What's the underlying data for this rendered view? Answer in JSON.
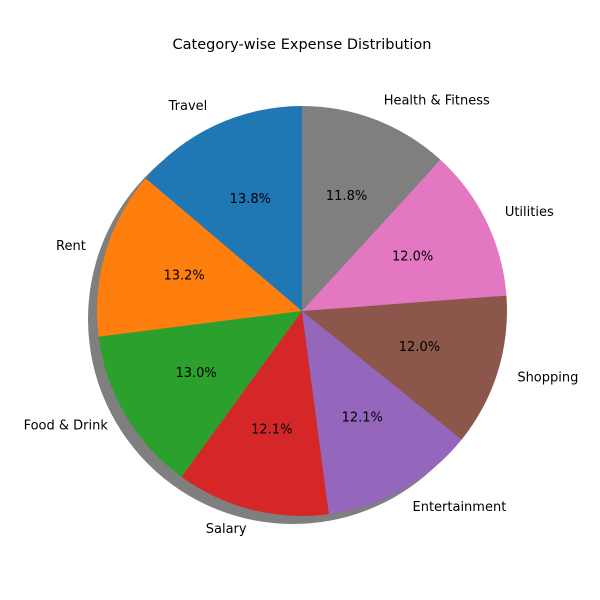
{
  "chart_data": {
    "type": "pie",
    "title": "Category-wise Expense Distribution",
    "start_angle_deg": 90,
    "direction": "counterclockwise",
    "shadow": true,
    "slices": [
      {
        "label": "Travel",
        "value": 13.8,
        "pct_label": "13.8%",
        "color": "#1f77b4"
      },
      {
        "label": "Rent",
        "value": 13.2,
        "pct_label": "13.2%",
        "color": "#ff7f0e"
      },
      {
        "label": "Food & Drink",
        "value": 13.0,
        "pct_label": "13.0%",
        "color": "#2ca02c"
      },
      {
        "label": "Salary",
        "value": 12.1,
        "pct_label": "12.1%",
        "color": "#d62728"
      },
      {
        "label": "Entertainment",
        "value": 12.1,
        "pct_label": "12.1%",
        "color": "#9467bd"
      },
      {
        "label": "Shopping",
        "value": 12.0,
        "pct_label": "12.0%",
        "color": "#8c564b"
      },
      {
        "label": "Utilities",
        "value": 12.0,
        "pct_label": "12.0%",
        "color": "#e377c2"
      },
      {
        "label": "Health & Fitness",
        "value": 11.8,
        "pct_label": "11.8%",
        "color": "#7f7f7f"
      }
    ]
  }
}
